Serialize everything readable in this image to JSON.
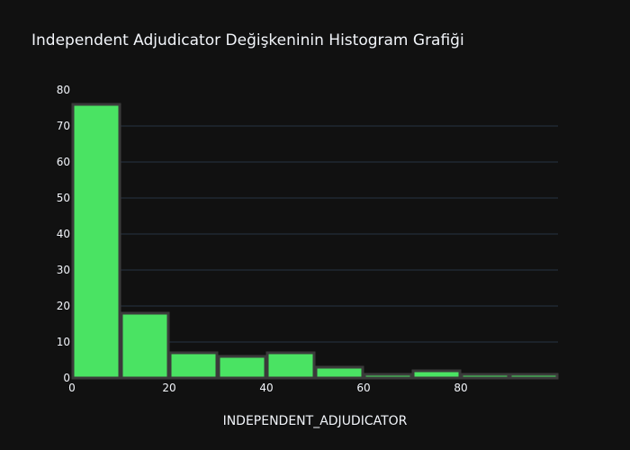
{
  "chart_data": {
    "type": "bar",
    "title": "Independent Adjudicator Değişkeninin Histogram Grafiği",
    "xlabel": "INDEPENDENT_ADJUDICATOR",
    "ylabel": "",
    "xlim": [
      0,
      100
    ],
    "ylim": [
      0,
      80
    ],
    "x_ticks": [
      0,
      20,
      40,
      60,
      80
    ],
    "y_ticks": [
      0,
      10,
      20,
      30,
      40,
      50,
      60,
      70,
      80
    ],
    "bins": [
      {
        "x0": 0,
        "x1": 10,
        "count": 76
      },
      {
        "x0": 10,
        "x1": 20,
        "count": 18
      },
      {
        "x0": 20,
        "x1": 30,
        "count": 7
      },
      {
        "x0": 30,
        "x1": 40,
        "count": 6
      },
      {
        "x0": 40,
        "x1": 50,
        "count": 7
      },
      {
        "x0": 50,
        "x1": 60,
        "count": 3
      },
      {
        "x0": 60,
        "x1": 70,
        "count": 1
      },
      {
        "x0": 70,
        "x1": 80,
        "count": 2
      },
      {
        "x0": 80,
        "x1": 90,
        "count": 1
      },
      {
        "x0": 90,
        "x1": 100,
        "count": 1
      }
    ],
    "grid": true,
    "legend": "none",
    "colors": {
      "bar_fill": "#4ae363",
      "bar_edge": "#3a3a3a",
      "background": "#111111",
      "grid": "#283442",
      "text": "#f2f5fa"
    }
  }
}
